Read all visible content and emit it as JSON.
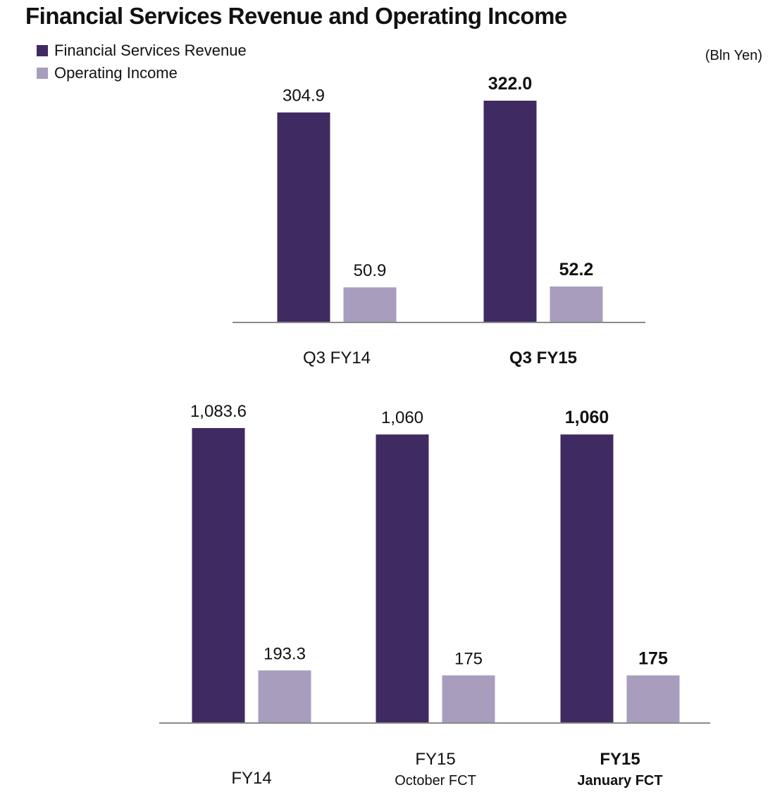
{
  "title": "Financial Services Revenue and Operating Income",
  "unit": "(Bln Yen)",
  "legend": [
    {
      "name": "Financial Services Revenue",
      "color": "#3f2a61"
    },
    {
      "name": "Operating Income",
      "color": "#a99dbd"
    }
  ],
  "chart_data": [
    {
      "type": "bar",
      "title": "",
      "categories": [
        {
          "label": "Q3 FY14",
          "sublabel": "",
          "emphasis": false
        },
        {
          "label": "Q3 FY15",
          "sublabel": "",
          "emphasis": true
        }
      ],
      "series": [
        {
          "name": "Financial Services Revenue",
          "color": "#3f2a61",
          "values": [
            304.9,
            322.0
          ],
          "labels": [
            "304.9",
            "322.0"
          ]
        },
        {
          "name": "Operating Income",
          "color": "#a99dbd",
          "values": [
            50.9,
            52.2
          ],
          "labels": [
            "50.9",
            "52.2"
          ]
        }
      ],
      "ylim": [
        0,
        322.0
      ],
      "grid": false,
      "legend": "top-left"
    },
    {
      "type": "bar",
      "title": "",
      "categories": [
        {
          "label": "FY14",
          "sublabel": "",
          "emphasis": false
        },
        {
          "label": "FY15",
          "sublabel": "October FCT",
          "emphasis": false
        },
        {
          "label": "FY15",
          "sublabel": "January FCT",
          "emphasis": true
        }
      ],
      "series": [
        {
          "name": "Financial Services Revenue",
          "color": "#3f2a61",
          "values": [
            1083.6,
            1060,
            1060
          ],
          "labels": [
            "1,083.6",
            "1,060",
            "1,060"
          ]
        },
        {
          "name": "Operating Income",
          "color": "#a99dbd",
          "values": [
            193.3,
            175,
            175
          ],
          "labels": [
            "193.3",
            "175",
            "175"
          ]
        }
      ],
      "ylim": [
        0,
        1083.6
      ],
      "grid": false,
      "legend": "top-left"
    }
  ]
}
